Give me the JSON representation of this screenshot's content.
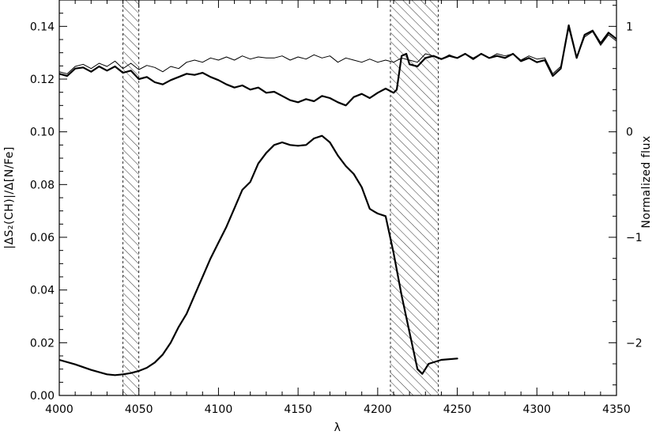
{
  "chart_data": {
    "type": "line",
    "title": "",
    "xlabel": "λ",
    "ylabel": "|ΔS₂(CH)|/Δ[N/Fe]",
    "y2label": "Normalized flux",
    "xlim": [
      4000,
      4350
    ],
    "ylim": [
      0.0,
      0.15
    ],
    "y2lim": [
      -2.5,
      1.25
    ],
    "xticks": [
      4000,
      4050,
      4100,
      4150,
      4200,
      4250,
      4300,
      4350
    ],
    "xtick_labels": [
      "4000",
      "4050",
      "4100",
      "4150",
      "4200",
      "4250",
      "4300",
      "4350"
    ],
    "yticks": [
      0.0,
      0.02,
      0.04,
      0.06,
      0.08,
      0.1,
      0.12,
      0.14
    ],
    "ytick_labels": [
      "0.00",
      "0.02",
      "0.04",
      "0.06",
      "0.08",
      "0.10",
      "0.12",
      "0.14"
    ],
    "y2ticks": [
      -2,
      -1,
      0,
      1
    ],
    "y2tick_labels": [
      "−2",
      "−1",
      "0",
      "1"
    ],
    "grid": false,
    "hatched_regions": [
      [
        4040,
        4050
      ],
      [
        4208,
        4238
      ]
    ],
    "series": [
      {
        "axis": "left",
        "style": "thick",
        "x": [
          4000,
          4010,
          4020,
          4030,
          4035,
          4040,
          4045,
          4050,
          4055,
          4060,
          4065,
          4070,
          4075,
          4080,
          4085,
          4090,
          4095,
          4100,
          4105,
          4110,
          4115,
          4120,
          4125,
          4130,
          4135,
          4140,
          4145,
          4150,
          4155,
          4160,
          4165,
          4170,
          4175,
          4180,
          4185,
          4190,
          4195,
          4198,
          4200,
          4205,
          4210,
          4215,
          4220,
          4225,
          4228,
          4232,
          4240,
          4250
        ],
        "y": [
          0.0135,
          0.0118,
          0.0097,
          0.008,
          0.0077,
          0.008,
          0.0085,
          0.0093,
          0.0105,
          0.0125,
          0.0155,
          0.02,
          0.026,
          0.031,
          0.038,
          0.045,
          0.052,
          0.058,
          0.064,
          0.071,
          0.078,
          0.081,
          0.088,
          0.092,
          0.095,
          0.096,
          0.095,
          0.0947,
          0.095,
          0.0975,
          0.0985,
          0.096,
          0.091,
          0.087,
          0.084,
          0.079,
          0.0708,
          0.0697,
          0.069,
          0.068,
          0.054,
          0.038,
          0.024,
          0.01,
          0.0082,
          0.012,
          0.0135,
          0.014
        ]
      },
      {
        "axis": "right",
        "style": "thin",
        "x": [
          4000,
          4005,
          4010,
          4015,
          4020,
          4025,
          4030,
          4035,
          4040,
          4045,
          4050,
          4055,
          4060,
          4065,
          4070,
          4075,
          4080,
          4085,
          4090,
          4095,
          4100,
          4105,
          4110,
          4115,
          4120,
          4125,
          4130,
          4135,
          4140,
          4145,
          4150,
          4155,
          4160,
          4165,
          4170,
          4175,
          4180,
          4185,
          4190,
          4195,
          4200,
          4205,
          4210,
          4215,
          4220,
          4225,
          4230,
          4235,
          4240,
          4245,
          4250,
          4255,
          4260,
          4265,
          4270,
          4275,
          4280,
          4285,
          4290,
          4295,
          4300,
          4305,
          4310,
          4315,
          4320,
          4325,
          4330,
          4335,
          4340,
          4345,
          4350
        ],
        "y": [
          0.57,
          0.55,
          0.62,
          0.64,
          0.6,
          0.65,
          0.62,
          0.67,
          0.6,
          0.65,
          0.59,
          0.63,
          0.61,
          0.57,
          0.62,
          0.6,
          0.66,
          0.68,
          0.66,
          0.7,
          0.68,
          0.71,
          0.68,
          0.72,
          0.69,
          0.71,
          0.7,
          0.7,
          0.72,
          0.68,
          0.71,
          0.69,
          0.73,
          0.7,
          0.72,
          0.66,
          0.7,
          0.68,
          0.66,
          0.69,
          0.66,
          0.68,
          0.66,
          0.7,
          0.68,
          0.66,
          0.74,
          0.72,
          0.69,
          0.73,
          0.7,
          0.74,
          0.7,
          0.74,
          0.7,
          0.74,
          0.72,
          0.74,
          0.68,
          0.72,
          0.69,
          0.7,
          0.55,
          0.62,
          0.98,
          0.7,
          0.9,
          0.95,
          0.82,
          0.92,
          0.86
        ]
      },
      {
        "axis": "right",
        "style": "thick",
        "x": [
          4000,
          4005,
          4010,
          4015,
          4020,
          4025,
          4030,
          4035,
          4040,
          4045,
          4050,
          4055,
          4060,
          4065,
          4070,
          4075,
          4080,
          4085,
          4090,
          4095,
          4100,
          4105,
          4110,
          4115,
          4120,
          4125,
          4130,
          4135,
          4140,
          4145,
          4150,
          4155,
          4160,
          4165,
          4170,
          4175,
          4180,
          4185,
          4190,
          4195,
          4200,
          4205,
          4210,
          4212,
          4215,
          4218,
          4220,
          4225,
          4230,
          4235,
          4240,
          4245,
          4250,
          4255,
          4260,
          4265,
          4270,
          4275,
          4280,
          4285,
          4290,
          4295,
          4300,
          4305,
          4310,
          4315,
          4320,
          4325,
          4330,
          4335,
          4340,
          4345,
          4350
        ],
        "y": [
          0.55,
          0.53,
          0.6,
          0.61,
          0.57,
          0.62,
          0.58,
          0.62,
          0.56,
          0.58,
          0.5,
          0.52,
          0.47,
          0.45,
          0.49,
          0.52,
          0.55,
          0.54,
          0.56,
          0.52,
          0.49,
          0.45,
          0.42,
          0.44,
          0.4,
          0.42,
          0.37,
          0.38,
          0.34,
          0.3,
          0.28,
          0.31,
          0.29,
          0.34,
          0.32,
          0.28,
          0.25,
          0.33,
          0.36,
          0.32,
          0.37,
          0.41,
          0.37,
          0.4,
          0.72,
          0.74,
          0.64,
          0.62,
          0.7,
          0.72,
          0.69,
          0.72,
          0.7,
          0.74,
          0.69,
          0.74,
          0.7,
          0.72,
          0.7,
          0.74,
          0.67,
          0.7,
          0.66,
          0.68,
          0.53,
          0.6,
          1.01,
          0.7,
          0.92,
          0.96,
          0.84,
          0.94,
          0.88
        ]
      }
    ]
  }
}
